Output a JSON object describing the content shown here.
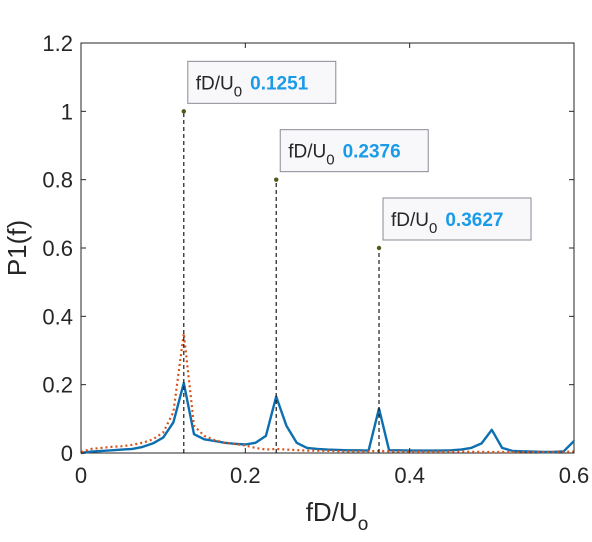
{
  "chart_data": {
    "type": "line",
    "title": "",
    "xlabel": "fD/U",
    "xlabel_sub": "o",
    "ylabel": "P1(f)",
    "xlim": [
      0,
      0.6
    ],
    "ylim": [
      0,
      1.2
    ],
    "xticks": [
      "0",
      "0.2",
      "0.4",
      "0.6"
    ],
    "yticks": [
      "0",
      "0.2",
      "0.4",
      "0.6",
      "0.8",
      "1",
      "1.2"
    ],
    "grid": false,
    "legend": "none",
    "series": [
      {
        "style": "solid",
        "color": "#0d6fb0",
        "x": [
          0.0,
          0.0125,
          0.025,
          0.0375,
          0.05,
          0.0625,
          0.075,
          0.0875,
          0.1,
          0.1125,
          0.1251,
          0.1375,
          0.15,
          0.1625,
          0.175,
          0.1875,
          0.2,
          0.2125,
          0.225,
          0.2376,
          0.25,
          0.2625,
          0.275,
          0.2875,
          0.3,
          0.3125,
          0.325,
          0.3375,
          0.35,
          0.3627,
          0.375,
          0.3875,
          0.4,
          0.4125,
          0.425,
          0.4375,
          0.45,
          0.4625,
          0.475,
          0.4875,
          0.5,
          0.5125,
          0.525,
          0.5375,
          0.55,
          0.5625,
          0.575,
          0.5875,
          0.6
        ],
        "y": [
          0.0,
          0.004,
          0.006,
          0.008,
          0.01,
          0.012,
          0.018,
          0.028,
          0.045,
          0.09,
          0.205,
          0.055,
          0.04,
          0.035,
          0.03,
          0.027,
          0.025,
          0.03,
          0.05,
          0.165,
          0.08,
          0.03,
          0.015,
          0.012,
          0.01,
          0.009,
          0.008,
          0.008,
          0.007,
          0.13,
          0.008,
          0.008,
          0.007,
          0.007,
          0.007,
          0.007,
          0.008,
          0.01,
          0.015,
          0.028,
          0.068,
          0.015,
          0.006,
          0.005,
          0.004,
          0.003,
          0.003,
          0.005,
          0.035
        ]
      },
      {
        "style": "dotted",
        "color": "#d95319",
        "x": [
          0.0,
          0.0125,
          0.025,
          0.0375,
          0.05,
          0.0625,
          0.075,
          0.0875,
          0.1,
          0.1125,
          0.1251,
          0.1375,
          0.15,
          0.1625,
          0.175,
          0.1875,
          0.2,
          0.2125,
          0.225,
          0.2376,
          0.25,
          0.275,
          0.3,
          0.325,
          0.35,
          0.3627,
          0.375,
          0.4,
          0.45,
          0.5,
          0.55,
          0.6
        ],
        "y": [
          0.003,
          0.012,
          0.015,
          0.018,
          0.02,
          0.024,
          0.03,
          0.04,
          0.06,
          0.12,
          0.35,
          0.08,
          0.05,
          0.038,
          0.03,
          0.026,
          0.022,
          0.015,
          0.01,
          0.012,
          0.01,
          0.007,
          0.006,
          0.005,
          0.005,
          0.006,
          0.005,
          0.004,
          0.004,
          0.003,
          0.003,
          0.004
        ]
      }
    ],
    "annotations": [
      {
        "label": "fD/U",
        "sub": "0",
        "value": "0.1251",
        "x": 0.1251,
        "y": 1.0
      },
      {
        "label": "fD/U",
        "sub": "0",
        "value": "0.2376",
        "x": 0.2376,
        "y": 0.8
      },
      {
        "label": "fD/U",
        "sub": "0",
        "value": "0.3627",
        "x": 0.3627,
        "y": 0.6
      }
    ]
  }
}
